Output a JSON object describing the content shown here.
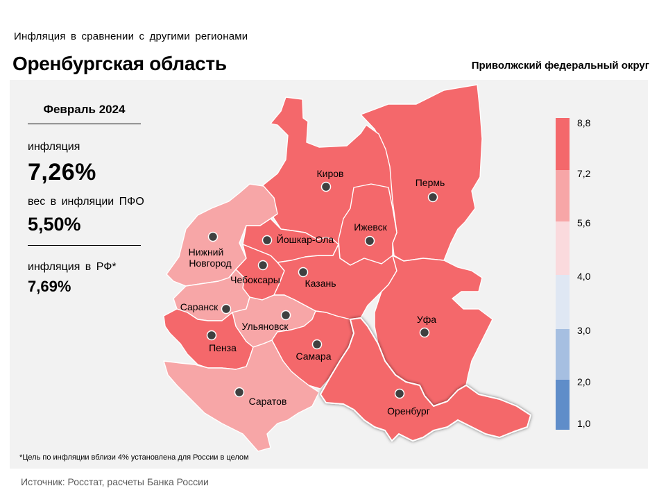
{
  "header": {
    "subtitle": "Инфляция  в сравнении  с другими  регионами",
    "title": "Оренбургская область",
    "district": "Приволжский федеральный округ"
  },
  "info": {
    "period": "Февраль 2024",
    "inflation_label": "инфляция",
    "inflation_value": "7,26%",
    "weight_label": "вес в инфляции  ПФО",
    "weight_value": "5,50%",
    "rf_label": "инфляция  в РФ*",
    "rf_value": "7,69%"
  },
  "footnote": "*Цель по инфляции вблизи 4% установлена для России в целом",
  "source": "Источник: Росстат, расчеты Банка России",
  "legend": {
    "ticks": [
      "8,8",
      "7,2",
      "5,6",
      "4,0",
      "3,0",
      "2,0",
      "1,0"
    ],
    "colors": [
      "#f4686b",
      "#f7a6a7",
      "#fadadd",
      "#dfe7f3",
      "#a6bfe1",
      "#5f8dc9"
    ]
  },
  "regions": [
    {
      "id": "kirov",
      "label": "Киров",
      "color": "#f4686b"
    },
    {
      "id": "perm",
      "label": "Пермь",
      "color": "#f4686b"
    },
    {
      "id": "izhevsk",
      "label": "Ижевск",
      "color": "#f4686b"
    },
    {
      "id": "nizhny",
      "label": "Нижний Новгород",
      "label_lines": [
        "Нижний",
        "Новгород"
      ],
      "color": "#f7a6a7"
    },
    {
      "id": "yoshkar",
      "label": "Йошкар-Ола",
      "color": "#f4686b"
    },
    {
      "id": "cheboksary",
      "label": "Чебоксары",
      "color": "#f4686b"
    },
    {
      "id": "kazan",
      "label": "Казань",
      "color": "#f4686b"
    },
    {
      "id": "saransk",
      "label": "Саранск",
      "color": "#f7a6a7"
    },
    {
      "id": "ulyanovsk",
      "label": "Ульяновск",
      "color": "#f7a6a7"
    },
    {
      "id": "penza",
      "label": "Пенза",
      "color": "#f4686b"
    },
    {
      "id": "samara",
      "label": "Самара",
      "color": "#f4686b"
    },
    {
      "id": "ufa",
      "label": "Уфа",
      "color": "#f4686b"
    },
    {
      "id": "saratov",
      "label": "Саратов",
      "color": "#f7a6a7"
    },
    {
      "id": "orenburg",
      "label": "Оренбург",
      "color": "#f4686b",
      "highlighted": true
    }
  ]
}
